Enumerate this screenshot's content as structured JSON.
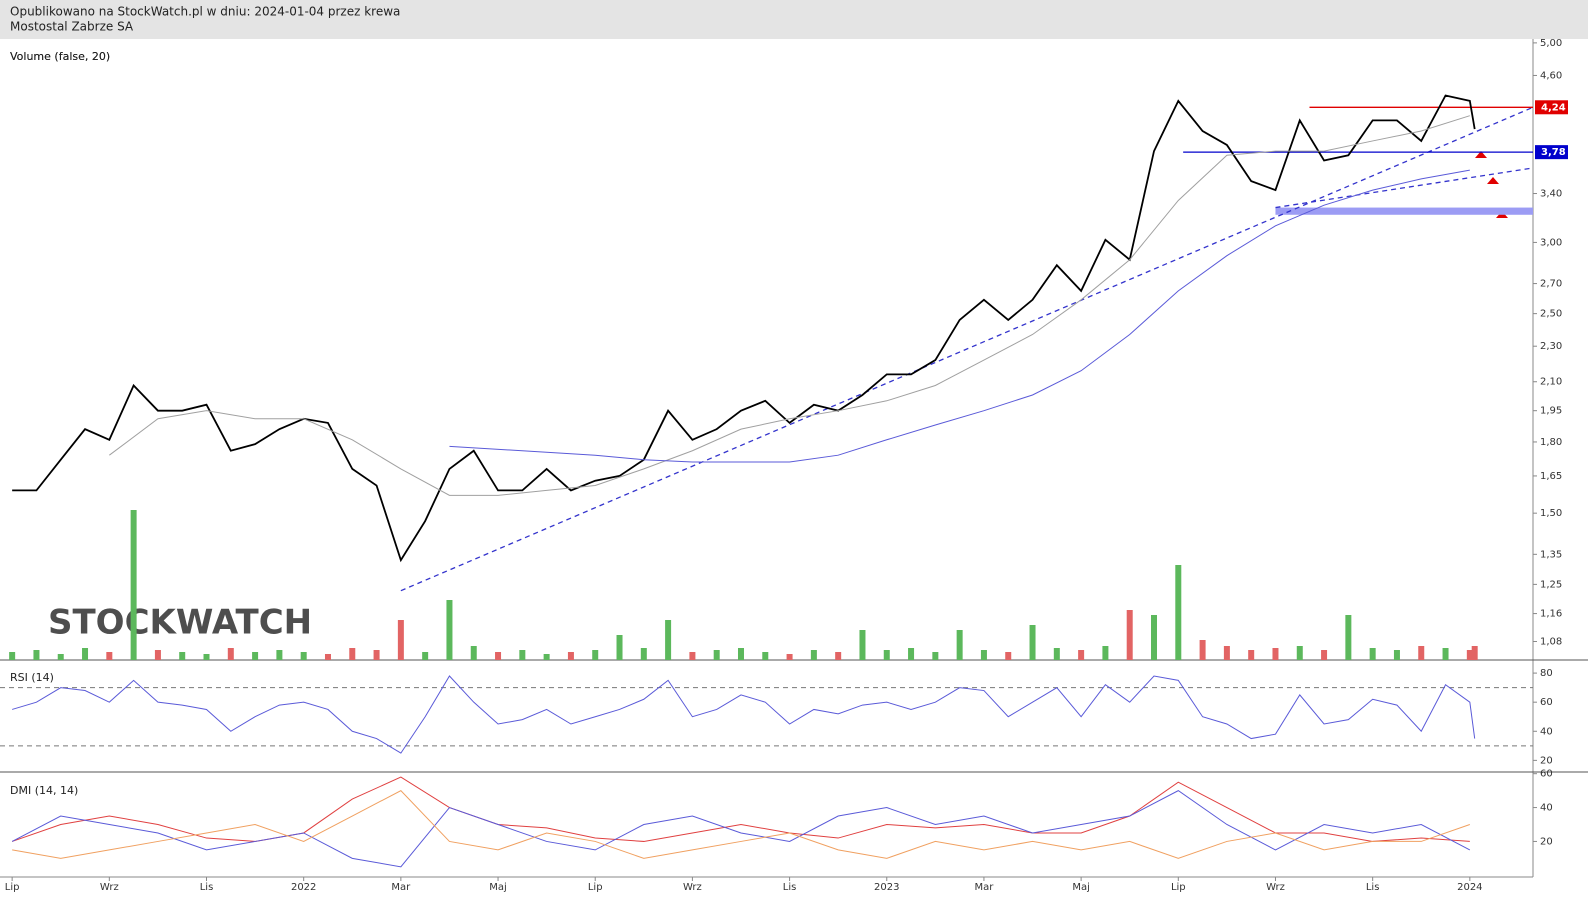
{
  "chart_data": [
    {
      "type": "line",
      "title": "Mostostal Zabrze SA",
      "subtitle": "Opublikowano na StockWatch.pl w dniu: 2024-01-04 przez krewa",
      "watermark": "STOCKWATCH",
      "log_scale": true,
      "xlim": [
        -0.25,
        31.3
      ],
      "ylim": [
        1.03,
        5.05
      ],
      "yticks": [
        {
          "value": 5.0,
          "label": "5,00"
        },
        {
          "value": 4.6,
          "label": "4,60"
        },
        {
          "value": 3.4,
          "label": "3,40"
        },
        {
          "value": 3.0,
          "label": "3,00"
        },
        {
          "value": 2.7,
          "label": "2,70"
        },
        {
          "value": 2.5,
          "label": "2,50"
        },
        {
          "value": 2.3,
          "label": "2,30"
        },
        {
          "value": 2.1,
          "label": "2,10"
        },
        {
          "value": 1.95,
          "label": "1,95"
        },
        {
          "value": 1.8,
          "label": "1,80"
        },
        {
          "value": 1.65,
          "label": "1,65"
        },
        {
          "value": 1.5,
          "label": "1,50"
        },
        {
          "value": 1.35,
          "label": "1,35"
        },
        {
          "value": 1.25,
          "label": "1,25"
        },
        {
          "value": 1.16,
          "label": "1,16"
        },
        {
          "value": 1.08,
          "label": "1,08"
        }
      ],
      "xticks": [
        {
          "value": 0,
          "label": "Lip"
        },
        {
          "value": 2,
          "label": "Wrz"
        },
        {
          "value": 4,
          "label": "Lis"
        },
        {
          "value": 6,
          "label": "2022"
        },
        {
          "value": 8,
          "label": "Mar"
        },
        {
          "value": 10,
          "label": "Maj"
        },
        {
          "value": 12,
          "label": "Lip"
        },
        {
          "value": 14,
          "label": "Wrz"
        },
        {
          "value": 16,
          "label": "Lis"
        },
        {
          "value": 18,
          "label": "2023"
        },
        {
          "value": 20,
          "label": "Mar"
        },
        {
          "value": 22,
          "label": "Maj"
        },
        {
          "value": 24,
          "label": "Lip"
        },
        {
          "value": 26,
          "label": "Wrz"
        },
        {
          "value": 28,
          "label": "Lis"
        },
        {
          "value": 30,
          "label": "2024"
        }
      ],
      "x": [
        0,
        0.5,
        1,
        1.5,
        2,
        2.5,
        3,
        3.5,
        4,
        4.5,
        5,
        5.5,
        6,
        6.5,
        7,
        7.5,
        8,
        8.5,
        9,
        9.5,
        10,
        10.5,
        11,
        11.5,
        12,
        12.5,
        13,
        13.5,
        14,
        14.5,
        15,
        15.5,
        16,
        16.5,
        17,
        17.5,
        18,
        18.5,
        19,
        19.5,
        20,
        20.5,
        21,
        21.5,
        22,
        22.5,
        23,
        23.5,
        24,
        24.5,
        25,
        25.5,
        26,
        26.5,
        27,
        27.5,
        28,
        28.5,
        29,
        29.5,
        30,
        30.1
      ],
      "series": [
        {
          "color": "#000000",
          "values": [
            1.59,
            1.59,
            1.72,
            1.86,
            1.81,
            2.08,
            1.95,
            1.95,
            1.98,
            1.76,
            1.79,
            1.86,
            1.91,
            1.89,
            1.68,
            1.61,
            1.33,
            1.47,
            1.68,
            1.76,
            1.59,
            1.59,
            1.68,
            1.59,
            1.63,
            1.65,
            1.72,
            1.95,
            1.81,
            1.86,
            1.95,
            2.0,
            1.89,
            1.98,
            1.95,
            2.03,
            2.14,
            2.14,
            2.22,
            2.46,
            2.59,
            2.46,
            2.59,
            2.83,
            2.65,
            3.02,
            2.87,
            3.79,
            4.31,
            3.99,
            3.85,
            3.51,
            3.43,
            4.1,
            3.7,
            3.75,
            4.1,
            4.1,
            3.89,
            4.37,
            4.31,
            4.01
          ]
        },
        {
          "color": "#a0a0a0",
          "x": [
            2,
            3,
            4,
            5,
            6,
            7,
            8,
            9,
            10,
            11,
            12,
            13,
            14,
            15,
            16,
            17,
            18,
            19,
            20,
            21,
            22,
            23,
            24,
            25,
            26,
            27,
            28,
            29,
            30
          ],
          "values": [
            1.74,
            1.91,
            1.95,
            1.91,
            1.91,
            1.81,
            1.68,
            1.57,
            1.57,
            1.59,
            1.61,
            1.68,
            1.76,
            1.86,
            1.91,
            1.95,
            2.0,
            2.08,
            2.22,
            2.37,
            2.59,
            2.87,
            3.34,
            3.75,
            3.79,
            3.79,
            3.89,
            3.99,
            4.15
          ]
        },
        {
          "color": "#5a5ad8",
          "x": [
            9,
            12,
            13,
            14,
            15,
            16,
            17,
            18,
            19,
            20,
            21,
            22,
            23,
            24,
            25,
            26,
            27,
            28,
            29,
            30
          ],
          "values": [
            1.78,
            1.74,
            1.72,
            1.71,
            1.71,
            1.71,
            1.74,
            1.81,
            1.88,
            1.95,
            2.03,
            2.16,
            2.37,
            2.65,
            2.9,
            3.13,
            3.3,
            3.43,
            3.53,
            3.61
          ]
        }
      ],
      "levels": [
        {
          "value": 4.24,
          "label": "4,24",
          "color": "#e00000",
          "from": 26.7
        },
        {
          "value": 3.78,
          "label": "3,78",
          "color": "#0000cc",
          "from": 24.1
        }
      ],
      "band": {
        "from": 26,
        "values": [
          3.22,
          3.28
        ],
        "color": "#9c9cf4"
      },
      "trendlines": [
        {
          "x": [
            8,
            31.3
          ],
          "values": [
            1.23,
            4.24
          ],
          "color": "#3333cc"
        },
        {
          "x": [
            26,
            31.3
          ],
          "values": [
            3.28,
            3.63
          ],
          "color": "#3333cc"
        }
      ]
    },
    {
      "type": "bar",
      "title": "Volume (false, 20)",
      "xlim": [
        -0.25,
        31.3
      ],
      "ylim": [
        0,
        155
      ],
      "colors": {
        "up": "#5cb85c",
        "down": "#e26464"
      },
      "x": [
        0,
        0.5,
        1,
        1.5,
        2,
        2.5,
        3,
        3.5,
        4,
        4.5,
        5,
        5.5,
        6,
        6.5,
        7,
        7.5,
        8,
        8.5,
        9,
        9.5,
        10,
        10.5,
        11,
        11.5,
        12,
        12.5,
        13,
        13.5,
        14,
        14.5,
        15,
        15.5,
        16,
        16.5,
        17,
        17.5,
        18,
        18.5,
        19,
        19.5,
        20,
        20.5,
        21,
        21.5,
        22,
        22.5,
        23,
        23.5,
        24,
        24.5,
        25,
        25.5,
        26,
        26.5,
        27,
        27.5,
        28,
        28.5,
        29,
        29.5,
        30,
        30.1
      ],
      "values": [
        8,
        10,
        6,
        12,
        8,
        150,
        10,
        8,
        6,
        12,
        8,
        10,
        8,
        6,
        12,
        10,
        40,
        8,
        60,
        14,
        8,
        10,
        6,
        8,
        10,
        25,
        12,
        40,
        8,
        10,
        12,
        8,
        6,
        10,
        8,
        30,
        10,
        12,
        8,
        30,
        10,
        8,
        35,
        12,
        10,
        14,
        50,
        45,
        95,
        20,
        14,
        10,
        12,
        14,
        10,
        45,
        12,
        10,
        14,
        12,
        10,
        14
      ]
    },
    {
      "type": "line",
      "title": "RSI (14)",
      "xlim": [
        -0.25,
        31.3
      ],
      "ylim": [
        12,
        89
      ],
      "yticks": [
        80,
        60,
        40,
        20
      ],
      "hlines": [
        70,
        30
      ],
      "x": [
        0,
        0.5,
        1,
        1.5,
        2,
        2.5,
        3,
        3.5,
        4,
        4.5,
        5,
        5.5,
        6,
        6.5,
        7,
        7.5,
        8,
        8.5,
        9,
        9.5,
        10,
        10.5,
        11,
        11.5,
        12,
        12.5,
        13,
        13.5,
        14,
        14.5,
        15,
        15.5,
        16,
        16.5,
        17,
        17.5,
        18,
        18.5,
        19,
        19.5,
        20,
        20.5,
        21,
        21.5,
        22,
        22.5,
        23,
        23.5,
        24,
        24.5,
        25,
        25.5,
        26,
        26.5,
        27,
        27.5,
        28,
        28.5,
        29,
        29.5,
        30,
        30.1
      ],
      "series": [
        {
          "color": "#5a5ad8",
          "values": [
            55,
            60,
            70,
            68,
            60,
            75,
            60,
            58,
            55,
            40,
            50,
            58,
            60,
            55,
            40,
            35,
            25,
            50,
            78,
            60,
            45,
            48,
            55,
            45,
            50,
            55,
            62,
            75,
            50,
            55,
            65,
            60,
            45,
            55,
            52,
            58,
            60,
            55,
            60,
            70,
            68,
            50,
            60,
            70,
            50,
            72,
            60,
            78,
            75,
            50,
            45,
            35,
            38,
            65,
            45,
            48,
            62,
            58,
            40,
            72,
            60,
            35
          ]
        }
      ]
    },
    {
      "type": "line",
      "title": "DMI (14, 14)",
      "xlim": [
        -0.25,
        31.3
      ],
      "ylim": [
        -1,
        61
      ],
      "yticks": [
        60,
        40,
        20
      ],
      "x": [
        0,
        1,
        2,
        3,
        4,
        5,
        6,
        7,
        8,
        9,
        10,
        11,
        12,
        13,
        14,
        15,
        16,
        17,
        18,
        19,
        20,
        21,
        22,
        23,
        24,
        25,
        26,
        27,
        28,
        29,
        30
      ],
      "series": [
        {
          "color": "#e04040",
          "values": [
            20,
            30,
            35,
            30,
            22,
            20,
            25,
            45,
            58,
            40,
            30,
            28,
            22,
            20,
            25,
            30,
            25,
            22,
            30,
            28,
            30,
            25,
            25,
            35,
            55,
            40,
            25,
            25,
            20,
            22,
            20
          ]
        },
        {
          "color": "#5a5ad8",
          "values": [
            20,
            35,
            30,
            25,
            15,
            20,
            25,
            10,
            5,
            40,
            30,
            20,
            15,
            30,
            35,
            25,
            20,
            35,
            40,
            30,
            35,
            25,
            30,
            35,
            50,
            30,
            15,
            30,
            25,
            30,
            15
          ]
        },
        {
          "color": "#f0a060",
          "values": [
            15,
            10,
            15,
            20,
            25,
            30,
            20,
            35,
            50,
            20,
            15,
            25,
            20,
            10,
            15,
            20,
            25,
            15,
            10,
            20,
            15,
            20,
            15,
            20,
            10,
            20,
            25,
            15,
            20,
            20,
            30
          ]
        }
      ]
    }
  ]
}
